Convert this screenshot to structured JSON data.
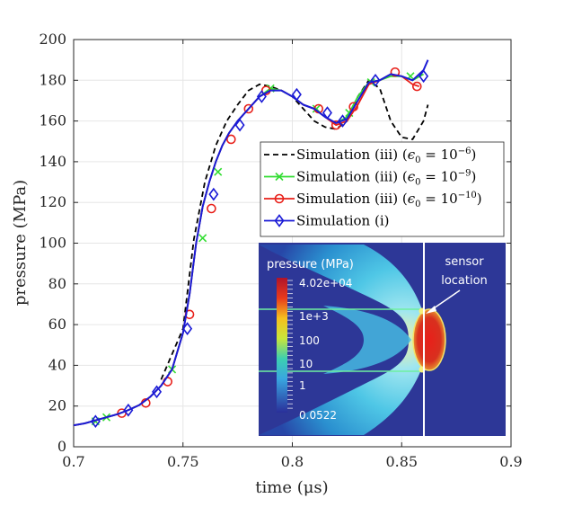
{
  "chart_data": {
    "type": "line",
    "xlabel": "time (μs)",
    "ylabel": "pressure (MPa)",
    "xlim": [
      0.7,
      0.9
    ],
    "ylim": [
      0,
      200
    ],
    "xticks": [
      "0.7",
      "0.75",
      "0.8",
      "0.85",
      "0.9"
    ],
    "yticks": [
      "0",
      "20",
      "40",
      "60",
      "80",
      "100",
      "120",
      "140",
      "160",
      "180",
      "200"
    ],
    "grid": true,
    "legend_position": "right-middle",
    "series": [
      {
        "name": "Simulation (iii) (ϵ₀ = 10⁻⁶)",
        "legend_prefix": "Simulation (iii) (",
        "legend_eps": "ϵ",
        "legend_sub": "0",
        "legend_eq": " = 10",
        "legend_sup": "−6",
        "legend_suffix": ")",
        "color": "#000000",
        "dash": "6,4",
        "marker": "none",
        "x": [
          0.74,
          0.75,
          0.755,
          0.76,
          0.765,
          0.77,
          0.775,
          0.78,
          0.785,
          0.79,
          0.795,
          0.8,
          0.805,
          0.81,
          0.815,
          0.82,
          0.825,
          0.83,
          0.835,
          0.84,
          0.845,
          0.85,
          0.855,
          0.86,
          0.862
        ],
        "y": [
          33,
          58,
          102,
          130,
          148,
          160,
          168,
          175,
          178,
          177,
          175,
          172,
          166,
          160,
          157,
          156,
          160,
          172,
          180,
          176,
          160,
          152,
          151,
          160,
          168
        ]
      },
      {
        "name": "Simulation (iii) (ϵ₀ = 10⁻⁹)",
        "legend_prefix": "Simulation (iii) (",
        "legend_eps": "ϵ",
        "legend_sub": "0",
        "legend_eq": " = 10",
        "legend_sup": "−9",
        "legend_suffix": ")",
        "color": "#33dd33",
        "dash": "none",
        "marker": "x",
        "x": [
          0.7,
          0.705,
          0.71,
          0.715,
          0.72,
          0.725,
          0.73,
          0.735,
          0.74,
          0.745,
          0.75,
          0.753,
          0.756,
          0.759,
          0.762,
          0.765,
          0.768,
          0.771,
          0.775,
          0.78,
          0.785,
          0.79,
          0.795,
          0.8,
          0.805,
          0.81,
          0.815,
          0.82,
          0.825,
          0.83,
          0.835,
          0.84,
          0.845,
          0.85,
          0.855,
          0.86
        ],
        "y": [
          10.5,
          11.5,
          13,
          14.5,
          16,
          18,
          20.5,
          24.5,
          30,
          38,
          56,
          75,
          100,
          118,
          130,
          140,
          148,
          154,
          160,
          166,
          172,
          176,
          175,
          172,
          168,
          166,
          162,
          159,
          162,
          172,
          179,
          180,
          182,
          182,
          180,
          183
        ],
        "markers_x": [
          0.71,
          0.715,
          0.745,
          0.759,
          0.766,
          0.79,
          0.811,
          0.826,
          0.836,
          0.854
        ],
        "markers_y": [
          12.5,
          14.5,
          38,
          102.5,
          135,
          176,
          166,
          164,
          179,
          182
        ]
      },
      {
        "name": "Simulation (iii) (ϵ₀ = 10⁻¹⁰)",
        "legend_prefix": "Simulation (iii) (",
        "legend_eps": "ϵ",
        "legend_sub": "0",
        "legend_eq": " = 10",
        "legend_sup": "−10",
        "legend_suffix": ")",
        "color": "#e8201a",
        "dash": "none",
        "marker": "o",
        "x": [
          0.7,
          0.705,
          0.71,
          0.715,
          0.72,
          0.725,
          0.73,
          0.735,
          0.74,
          0.745,
          0.75,
          0.753,
          0.756,
          0.759,
          0.762,
          0.765,
          0.768,
          0.771,
          0.775,
          0.78,
          0.785,
          0.79,
          0.795,
          0.8,
          0.805,
          0.81,
          0.815,
          0.82,
          0.825,
          0.83,
          0.835,
          0.84,
          0.845,
          0.85,
          0.855,
          0.858
        ],
        "y": [
          10.5,
          11.5,
          13,
          14.5,
          16,
          18,
          20.5,
          24.5,
          30,
          38,
          56,
          75,
          100,
          118,
          130,
          140,
          148,
          154,
          160,
          166,
          172,
          175,
          175,
          172,
          168,
          166,
          162,
          158,
          160,
          168,
          178,
          180,
          183,
          182,
          178,
          177
        ],
        "markers_x": [
          0.722,
          0.733,
          0.743,
          0.753,
          0.763,
          0.772,
          0.78,
          0.788,
          0.812,
          0.82,
          0.828,
          0.847,
          0.857
        ],
        "markers_y": [
          16.5,
          21.5,
          32,
          65,
          117,
          151,
          166,
          175,
          166,
          158,
          167,
          184,
          177
        ]
      },
      {
        "name": "Simulation (i)",
        "legend_prefix": "Simulation (i)",
        "legend_eps": "",
        "legend_sub": "",
        "legend_eq": "",
        "legend_sup": "",
        "legend_suffix": "",
        "color": "#1a1ad6",
        "dash": "none",
        "marker": "diamond",
        "x": [
          0.7,
          0.705,
          0.71,
          0.715,
          0.72,
          0.725,
          0.73,
          0.735,
          0.74,
          0.745,
          0.75,
          0.753,
          0.756,
          0.759,
          0.762,
          0.765,
          0.768,
          0.771,
          0.775,
          0.78,
          0.785,
          0.79,
          0.795,
          0.8,
          0.805,
          0.81,
          0.815,
          0.82,
          0.825,
          0.83,
          0.835,
          0.84,
          0.845,
          0.85,
          0.855,
          0.86,
          0.862
        ],
        "y": [
          10.5,
          11.5,
          13,
          14.5,
          16,
          18,
          20.5,
          24.5,
          30,
          38,
          56,
          75,
          100,
          118,
          130,
          140,
          148,
          154,
          160,
          166,
          172,
          175,
          175,
          172,
          168,
          166,
          162,
          159,
          161,
          170,
          179,
          180,
          183,
          182,
          180,
          185,
          190
        ],
        "markers_x": [
          0.71,
          0.725,
          0.738,
          0.752,
          0.764,
          0.776,
          0.786,
          0.802,
          0.816,
          0.823,
          0.838,
          0.86
        ],
        "markers_y": [
          12.5,
          18,
          27,
          58,
          124,
          158,
          172,
          173,
          164,
          160,
          180,
          182
        ]
      }
    ],
    "inset": {
      "colorbar_title": "pressure (MPa)",
      "colorbar_ticks": [
        "4.02e+04",
        "1e+3",
        "100",
        "10",
        "1",
        "0.0522"
      ],
      "sensor_label_line1": "sensor",
      "sensor_label_line2": "location"
    }
  }
}
